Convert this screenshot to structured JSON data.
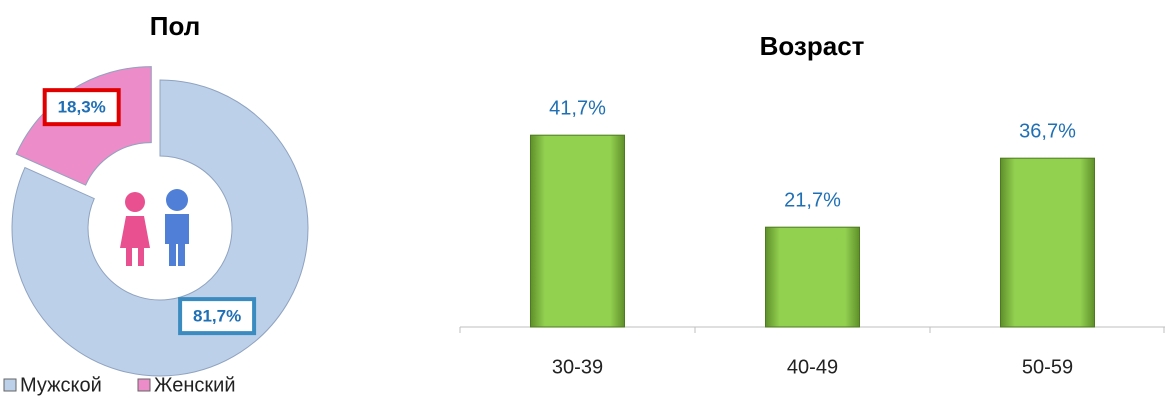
{
  "chart_data": [
    {
      "type": "pie",
      "title": "Пол",
      "categories": [
        "Мужской",
        "Женский"
      ],
      "values": [
        81.7,
        18.3
      ],
      "value_labels": [
        "81,7%",
        "18,3%"
      ],
      "colors": [
        "#bcd0ea",
        "#ec8cc8"
      ],
      "legend": "bottom"
    },
    {
      "type": "bar",
      "title": "Возраст",
      "categories": [
        "30-39",
        "40-49",
        "50-59"
      ],
      "values": [
        41.7,
        21.7,
        36.7
      ],
      "value_labels": [
        "41,7%",
        "21,7%",
        "36,7%"
      ],
      "color": "#92d050"
    }
  ]
}
